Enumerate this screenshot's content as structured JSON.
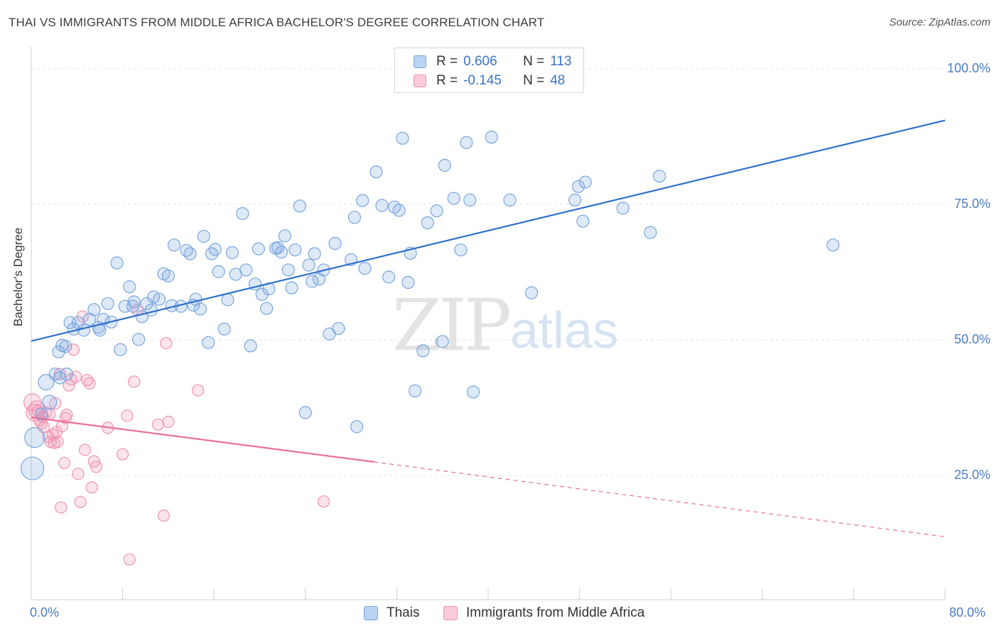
{
  "header": {
    "title": "THAI VS IMMIGRANTS FROM MIDDLE AFRICA BACHELOR'S DEGREE CORRELATION CHART",
    "source": "Source: ZipAtlas.com"
  },
  "watermark": {
    "zip": "ZIP",
    "atlas": "atlas"
  },
  "legend": {
    "rows": [
      {
        "r_label": "R =",
        "r_value": "0.606",
        "n_label": "N =",
        "n_value": "113",
        "color": "#a9c8f0"
      },
      {
        "r_label": "R =",
        "r_value": "-0.145",
        "n_label": "N =",
        "n_value": "48",
        "color": "#f6b8cb"
      }
    ]
  },
  "axes": {
    "ylabel": "Bachelor's Degree",
    "yticks": [
      "100.0%",
      "75.0%",
      "50.0%",
      "25.0%"
    ],
    "xtick_left": "0.0%",
    "xtick_right": "80.0%"
  },
  "bottom_legend": {
    "series1": "Thais",
    "series2": "Immigrants from Middle Africa"
  },
  "chart_data": {
    "type": "scatter",
    "xlim": [
      0,
      80
    ],
    "ylim": [
      0,
      100
    ],
    "grid": true,
    "legend_position": "top-center",
    "series": [
      {
        "name": "Thais",
        "color": "#7aa6de",
        "trend_color": "#2f6fcc",
        "trend": {
          "x0": 0,
          "y0": 49.8,
          "x1": 80,
          "y1": 90.5
        },
        "points": [
          [
            0.1,
            26.3
          ],
          [
            0.3,
            32.0
          ],
          [
            1.3,
            42.2
          ],
          [
            1.6,
            38.5
          ],
          [
            0.9,
            36.3
          ],
          [
            2.1,
            43.7
          ],
          [
            2.4,
            47.8
          ],
          [
            2.7,
            49.0
          ],
          [
            3.1,
            43.7
          ],
          [
            3.4,
            53.2
          ],
          [
            3.7,
            52.0
          ],
          [
            4.1,
            53.2
          ],
          [
            4.6,
            51.8
          ],
          [
            5.1,
            53.8
          ],
          [
            5.5,
            55.6
          ],
          [
            5.9,
            52.3
          ],
          [
            6.3,
            53.8
          ],
          [
            6.7,
            56.7
          ],
          [
            7.0,
            53.3
          ],
          [
            7.5,
            64.2
          ],
          [
            7.8,
            48.2
          ],
          [
            8.2,
            56.2
          ],
          [
            8.6,
            59.8
          ],
          [
            8.9,
            56.2
          ],
          [
            9.4,
            50.1
          ],
          [
            9.7,
            54.3
          ],
          [
            10.1,
            56.7
          ],
          [
            10.5,
            55.5
          ],
          [
            10.7,
            57.9
          ],
          [
            11.2,
            57.5
          ],
          [
            11.6,
            62.2
          ],
          [
            12.0,
            61.8
          ],
          [
            12.3,
            56.3
          ],
          [
            12.5,
            67.5
          ],
          [
            13.1,
            56.2
          ],
          [
            13.6,
            66.5
          ],
          [
            13.9,
            65.9
          ],
          [
            14.2,
            56.4
          ],
          [
            14.4,
            57.5
          ],
          [
            14.8,
            55.7
          ],
          [
            15.1,
            69.1
          ],
          [
            15.5,
            49.5
          ],
          [
            15.8,
            65.9
          ],
          [
            16.1,
            66.7
          ],
          [
            16.4,
            62.6
          ],
          [
            16.9,
            52.0
          ],
          [
            17.2,
            57.4
          ],
          [
            17.6,
            66.1
          ],
          [
            17.9,
            62.1
          ],
          [
            18.5,
            73.3
          ],
          [
            18.8,
            62.9
          ],
          [
            19.2,
            48.9
          ],
          [
            19.6,
            60.3
          ],
          [
            19.9,
            66.8
          ],
          [
            20.2,
            58.4
          ],
          [
            20.6,
            55.8
          ],
          [
            20.8,
            59.4
          ],
          [
            21.4,
            66.9
          ],
          [
            21.6,
            67.0
          ],
          [
            21.9,
            66.2
          ],
          [
            22.2,
            69.2
          ],
          [
            22.5,
            62.9
          ],
          [
            22.8,
            59.6
          ],
          [
            23.1,
            66.6
          ],
          [
            23.5,
            74.7
          ],
          [
            24.0,
            36.6
          ],
          [
            24.3,
            63.8
          ],
          [
            24.6,
            60.8
          ],
          [
            24.8,
            65.9
          ],
          [
            25.2,
            61.2
          ],
          [
            25.6,
            62.9
          ],
          [
            26.1,
            51.1
          ],
          [
            26.6,
            67.8
          ],
          [
            26.9,
            52.1
          ],
          [
            28.0,
            64.8
          ],
          [
            28.3,
            72.6
          ],
          [
            28.5,
            34.0
          ],
          [
            29.0,
            75.7
          ],
          [
            29.2,
            63.2
          ],
          [
            30.2,
            81.0
          ],
          [
            30.7,
            74.8
          ],
          [
            31.3,
            61.6
          ],
          [
            31.8,
            74.5
          ],
          [
            32.2,
            73.9
          ],
          [
            32.5,
            87.2
          ],
          [
            33.0,
            60.6
          ],
          [
            33.2,
            66.0
          ],
          [
            33.6,
            40.6
          ],
          [
            34.3,
            48.0
          ],
          [
            34.7,
            71.6
          ],
          [
            35.5,
            73.8
          ],
          [
            36.0,
            49.7
          ],
          [
            36.2,
            82.2
          ],
          [
            37.0,
            76.1
          ],
          [
            37.6,
            66.6
          ],
          [
            38.1,
            86.4
          ],
          [
            38.4,
            75.8
          ],
          [
            38.7,
            40.4
          ],
          [
            40.3,
            87.4
          ],
          [
            41.9,
            75.8
          ],
          [
            43.8,
            58.7
          ],
          [
            47.6,
            75.8
          ],
          [
            47.9,
            78.3
          ],
          [
            48.3,
            71.9
          ],
          [
            48.5,
            79.1
          ],
          [
            51.8,
            74.3
          ],
          [
            54.2,
            69.8
          ],
          [
            55.0,
            80.2
          ],
          [
            70.2,
            67.5
          ],
          [
            2.5,
            43.0
          ],
          [
            3.0,
            48.8
          ],
          [
            6.0,
            51.8
          ],
          [
            9.0,
            57.0
          ]
        ],
        "sizes_note": "most points uniform; leftmost points larger"
      },
      {
        "name": "Immigrants from Middle Africa",
        "color": "#f094b2",
        "trend_color": "#e8709a",
        "trend": {
          "x0": 0,
          "y0": 35.7,
          "x1": 30,
          "y1": 27.5,
          "dash_x1": 80,
          "dash_y1": 13.7
        },
        "points": [
          [
            0.1,
            38.5
          ],
          [
            0.3,
            36.6
          ],
          [
            0.5,
            37.2
          ],
          [
            0.7,
            35.1
          ],
          [
            0.9,
            34.6
          ],
          [
            1.1,
            33.9
          ],
          [
            1.3,
            36.6
          ],
          [
            1.5,
            32.1
          ],
          [
            1.7,
            31.2
          ],
          [
            1.9,
            32.5
          ],
          [
            2.1,
            38.3
          ],
          [
            2.3,
            31.2
          ],
          [
            2.5,
            43.7
          ],
          [
            2.7,
            34.1
          ],
          [
            2.9,
            27.3
          ],
          [
            3.1,
            36.2
          ],
          [
            3.3,
            41.6
          ],
          [
            3.5,
            42.7
          ],
          [
            3.7,
            48.2
          ],
          [
            3.9,
            43.2
          ],
          [
            4.1,
            25.3
          ],
          [
            4.3,
            20.1
          ],
          [
            4.5,
            54.3
          ],
          [
            4.7,
            29.7
          ],
          [
            4.9,
            42.6
          ],
          [
            5.1,
            42.0
          ],
          [
            5.3,
            22.8
          ],
          [
            5.7,
            26.6
          ],
          [
            6.7,
            33.8
          ],
          [
            8.0,
            28.9
          ],
          [
            8.4,
            36.0
          ],
          [
            8.6,
            9.5
          ],
          [
            9.0,
            42.3
          ],
          [
            9.3,
            55.5
          ],
          [
            11.1,
            34.4
          ],
          [
            11.6,
            17.6
          ],
          [
            11.8,
            49.4
          ],
          [
            12.0,
            34.9
          ],
          [
            14.6,
            40.7
          ],
          [
            25.6,
            20.2
          ],
          [
            2.6,
            19.1
          ],
          [
            2.0,
            31.0
          ],
          [
            1.0,
            35.8
          ],
          [
            0.6,
            36.9
          ],
          [
            1.6,
            36.3
          ],
          [
            2.2,
            33.0
          ],
          [
            3.0,
            35.6
          ],
          [
            5.5,
            27.6
          ]
        ]
      }
    ]
  }
}
